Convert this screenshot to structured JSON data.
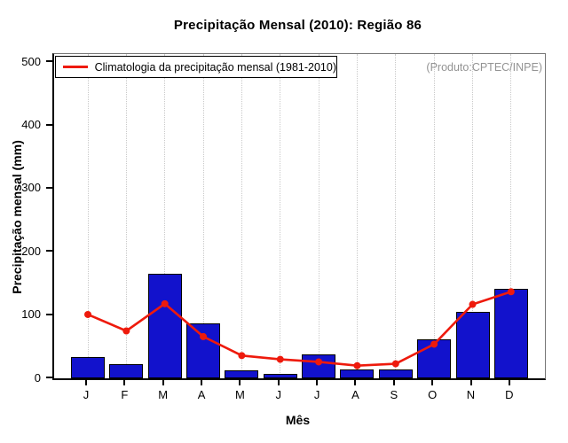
{
  "title": "Precipitação Mensal (2010): Região 86",
  "annotation": "(Produto:CPTEC/INPE)",
  "legend": {
    "items": [
      {
        "label": "Climatologia da precipitação mensal (1981-2010)",
        "marker": "red-line"
      }
    ]
  },
  "x_axis": {
    "label": "Mês",
    "tick_labels": [
      "J",
      "F",
      "M",
      "A",
      "M",
      "J",
      "J",
      "A",
      "S",
      "O",
      "N",
      "D"
    ]
  },
  "y_axis": {
    "label": "Precipitação mensal (mm)",
    "ticks": [
      0,
      100,
      200,
      300,
      400,
      500
    ]
  },
  "colors": {
    "bar_fill": "#1212cc",
    "bar_border": "#000000",
    "line": "#ee1a0c",
    "grid": "#c9c9c9",
    "annotation_text": "#939393",
    "axis": "#000000"
  },
  "chart_data": {
    "type": "bar",
    "title": "Precipitação Mensal (2010): Região 86",
    "xlabel": "Mês",
    "ylabel": "Precipitação mensal (mm)",
    "categories": [
      "J",
      "F",
      "M",
      "A",
      "M",
      "J",
      "J",
      "A",
      "S",
      "O",
      "N",
      "D"
    ],
    "series": [
      {
        "name": "Precipitação mensal 2010",
        "type": "bar",
        "values": [
          33,
          23,
          165,
          87,
          12,
          7,
          38,
          14,
          14,
          62,
          105,
          142
        ]
      },
      {
        "name": "Climatologia da precipitação mensal (1981-2010)",
        "type": "line",
        "values": [
          101,
          75,
          118,
          66,
          36,
          30,
          26,
          20,
          23,
          54,
          117,
          137
        ]
      }
    ],
    "ylim": [
      0,
      513
    ],
    "y_ticks": [
      0,
      100,
      200,
      300,
      400,
      500
    ],
    "grid": "vertical-dotted-per-month",
    "legend_position": "top-left-inside",
    "annotations": [
      "(Produto:CPTEC/INPE)"
    ]
  }
}
